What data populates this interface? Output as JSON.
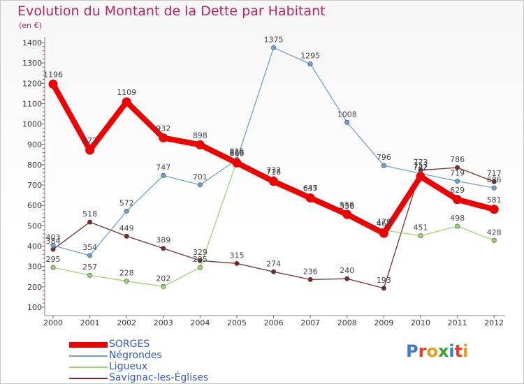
{
  "title": "Evolution du Montant de la Dette par Habitant",
  "unit_label": "(en €)",
  "logo": {
    "letters": [
      "P",
      "r",
      "o",
      "x",
      "i",
      "t",
      "i"
    ],
    "colors": [
      "#3a7ad6",
      "#e2402c",
      "#e89a1c",
      "#3aa52c",
      "#3a7ad6",
      "#e2402c",
      "#e89a1c"
    ]
  },
  "chart_data": {
    "type": "line",
    "x": [
      "2000",
      "2001",
      "2002",
      "2003",
      "2004",
      "2005",
      "2006",
      "2007",
      "2008",
      "2009",
      "2010",
      "2011",
      "2012"
    ],
    "ylim": [
      100,
      1400
    ],
    "yticks": [
      100,
      200,
      300,
      400,
      500,
      600,
      700,
      800,
      900,
      1000,
      1100,
      1200,
      1300,
      1400
    ],
    "grid": false,
    "legend_placement": "bottom-left",
    "series": [
      {
        "name": "SORGES",
        "color": "#ee0000",
        "values": [
          1196,
          872,
          1109,
          932,
          898,
          809,
          718,
          637,
          556,
          463,
          742,
          629,
          581
        ]
      },
      {
        "name": "Négrondes",
        "color": "#6ea2d6",
        "values": [
          403,
          354,
          572,
          747,
          701,
          825,
          1375,
          1295,
          1008,
          796,
          757,
          719,
          686
        ]
      },
      {
        "name": "Ligueux",
        "color": "#98d86a",
        "values": [
          295,
          257,
          228,
          202,
          295,
          818,
          732,
          645,
          556,
          479,
          451,
          498,
          428
        ]
      },
      {
        "name": "Savignac-les-Églises",
        "color": "#7a2c2c",
        "values": [
          384,
          518,
          449,
          389,
          329,
          315,
          274,
          236,
          240,
          193,
          773,
          786,
          717
        ]
      }
    ]
  }
}
